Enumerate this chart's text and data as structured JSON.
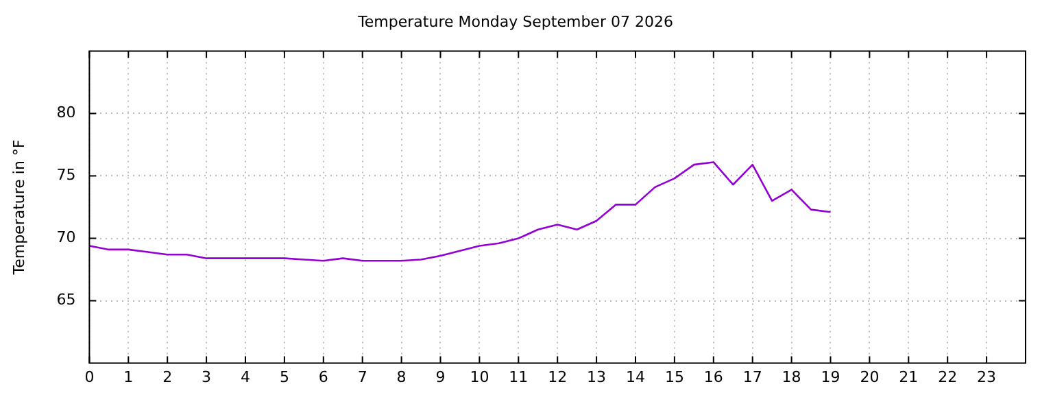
{
  "chart_data": {
    "type": "line",
    "title": "Temperature Monday September 07 2026",
    "ylabel": "Temperature in °F",
    "x": [
      0,
      0.5,
      1,
      1.5,
      2,
      2.5,
      3,
      3.5,
      4,
      4.5,
      5,
      5.5,
      6,
      6.5,
      7,
      7.5,
      8,
      8.5,
      9,
      9.5,
      10,
      10.5,
      11,
      11.5,
      12,
      12.5,
      13,
      13.5,
      14,
      14.5,
      15,
      15.5,
      16,
      16.5,
      17,
      17.5,
      18,
      18.5,
      19
    ],
    "series": [
      {
        "color": "#9400d3",
        "values": [
          69.4,
          69.1,
          69.1,
          68.9,
          68.7,
          68.7,
          68.4,
          68.4,
          68.4,
          68.4,
          68.4,
          68.3,
          68.2,
          68.4,
          68.2,
          68.2,
          68.2,
          68.3,
          68.6,
          69.0,
          69.4,
          69.6,
          70.0,
          70.7,
          71.1,
          70.7,
          71.4,
          72.7,
          72.7,
          74.1,
          74.8,
          75.9,
          76.1,
          74.3,
          75.9,
          73.0,
          73.9,
          72.3,
          72.1
        ]
      }
    ],
    "xlim": [
      0,
      24
    ],
    "xticks": [
      0,
      1,
      2,
      3,
      4,
      5,
      6,
      7,
      8,
      9,
      10,
      11,
      12,
      13,
      14,
      15,
      16,
      17,
      18,
      19,
      20,
      21,
      22,
      23
    ],
    "ylim": [
      60,
      85
    ],
    "yticks": [
      65,
      70,
      75,
      80
    ],
    "grid": true,
    "legend": false,
    "marker": "none",
    "line_style": "solid"
  }
}
